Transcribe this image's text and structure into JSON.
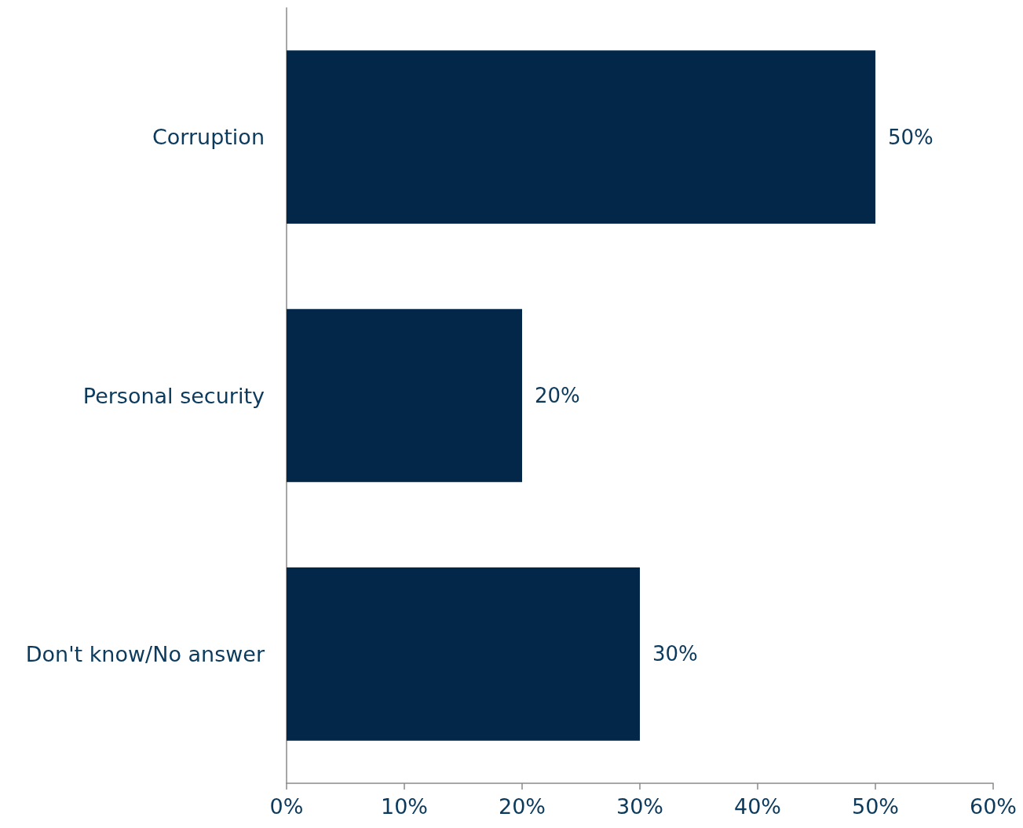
{
  "chart_data": {
    "type": "bar",
    "orientation": "horizontal",
    "categories": [
      "Corruption",
      "Personal security",
      "Don't know/No answer"
    ],
    "values": [
      50,
      20,
      30
    ],
    "color": "#022749",
    "value_labels": [
      "50%",
      "20%",
      "30%"
    ],
    "xlim": [
      0,
      60
    ],
    "xticks": [
      {
        "value": 0,
        "label": "0%"
      },
      {
        "value": 10,
        "label": "10%"
      },
      {
        "value": 20,
        "label": "20%"
      },
      {
        "value": 30,
        "label": "30%"
      },
      {
        "value": 40,
        "label": "40%"
      },
      {
        "value": 50,
        "label": "50%"
      },
      {
        "value": 60,
        "label": "60%"
      }
    ],
    "grid": false
  }
}
